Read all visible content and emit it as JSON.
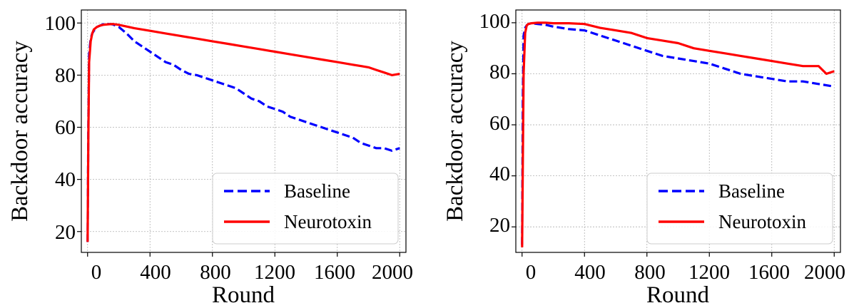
{
  "chart_data": [
    {
      "type": "line",
      "xlabel": "Round",
      "ylabel": "Backdoor accuracy",
      "xlim": [
        -40,
        2040
      ],
      "ylim": [
        12,
        105
      ],
      "xticks": [
        0,
        400,
        800,
        1200,
        1600,
        2000
      ],
      "yticks": [
        20,
        40,
        60,
        80,
        100
      ],
      "grid": true,
      "legend_position": "lower-right",
      "series": [
        {
          "name": "Baseline",
          "color": "#0000ff",
          "style": "dashed",
          "x": [
            0,
            5,
            10,
            20,
            30,
            40,
            60,
            80,
            100,
            130,
            160,
            200,
            250,
            300,
            350,
            400,
            450,
            500,
            550,
            600,
            650,
            700,
            750,
            800,
            850,
            900,
            950,
            1000,
            1050,
            1100,
            1150,
            1200,
            1250,
            1300,
            1350,
            1400,
            1450,
            1500,
            1550,
            1600,
            1650,
            1700,
            1750,
            1800,
            1850,
            1900,
            1950,
            2000
          ],
          "values": [
            16,
            60,
            88,
            94,
            96,
            97,
            98.5,
            99,
            99.5,
            99.6,
            99.5,
            98.5,
            96,
            93,
            91,
            89,
            87,
            85,
            84,
            82,
            80.5,
            80,
            79,
            78,
            77,
            76,
            75,
            73,
            71,
            70,
            68,
            67,
            66,
            64,
            63,
            62,
            61,
            60,
            59,
            58,
            57,
            56,
            54,
            53,
            52,
            52,
            51,
            52
          ]
        },
        {
          "name": "Neurotoxin",
          "color": "#ff0000",
          "style": "solid",
          "x": [
            0,
            5,
            10,
            20,
            30,
            40,
            60,
            80,
            100,
            130,
            160,
            200,
            300,
            400,
            500,
            600,
            700,
            800,
            900,
            1000,
            1100,
            1200,
            1300,
            1400,
            1500,
            1600,
            1700,
            1800,
            1850,
            1900,
            1950,
            2000
          ],
          "values": [
            16,
            55,
            85,
            93,
            96,
            97.5,
            98.5,
            99,
            99.3,
            99.5,
            99.6,
            99.3,
            98,
            97,
            96,
            95,
            94,
            93,
            92,
            91,
            90,
            89,
            88,
            87,
            86,
            85,
            84,
            83,
            82,
            81,
            80,
            80.5
          ]
        }
      ]
    },
    {
      "type": "line",
      "xlabel": "Round",
      "ylabel": "Backdoor accuracy",
      "xlim": [
        -40,
        2040
      ],
      "ylim": [
        10,
        105
      ],
      "xticks": [
        0,
        400,
        800,
        1200,
        1600,
        2000
      ],
      "yticks": [
        20,
        40,
        60,
        80,
        100
      ],
      "grid": true,
      "legend_position": "lower-right",
      "series": [
        {
          "name": "Baseline",
          "color": "#0000ff",
          "style": "dashed",
          "x": [
            0,
            5,
            10,
            20,
            30,
            40,
            60,
            100,
            150,
            200,
            300,
            400,
            500,
            600,
            700,
            800,
            900,
            1000,
            1100,
            1200,
            1300,
            1400,
            1500,
            1600,
            1700,
            1800,
            1900,
            2000
          ],
          "values": [
            13,
            70,
            95,
            98,
            99,
            99.5,
            99.8,
            99.5,
            99.2,
            98.5,
            97.5,
            97,
            95,
            93,
            91,
            89,
            87,
            86,
            85,
            84,
            82,
            80,
            79,
            78,
            77,
            77,
            76,
            75
          ]
        },
        {
          "name": "Neurotoxin",
          "color": "#ff0000",
          "style": "solid",
          "x": [
            0,
            5,
            10,
            20,
            30,
            40,
            60,
            100,
            150,
            200,
            300,
            400,
            500,
            600,
            700,
            800,
            900,
            1000,
            1100,
            1200,
            1300,
            1400,
            1500,
            1600,
            1700,
            1800,
            1900,
            1950,
            2000
          ],
          "values": [
            12,
            45,
            80,
            96,
            99,
            99.5,
            99.8,
            100,
            100,
            99.8,
            99.8,
            99.5,
            98,
            97,
            96,
            94,
            93,
            92,
            90,
            89,
            88,
            87,
            86,
            85,
            84,
            83,
            83,
            80,
            81
          ]
        }
      ]
    }
  ]
}
